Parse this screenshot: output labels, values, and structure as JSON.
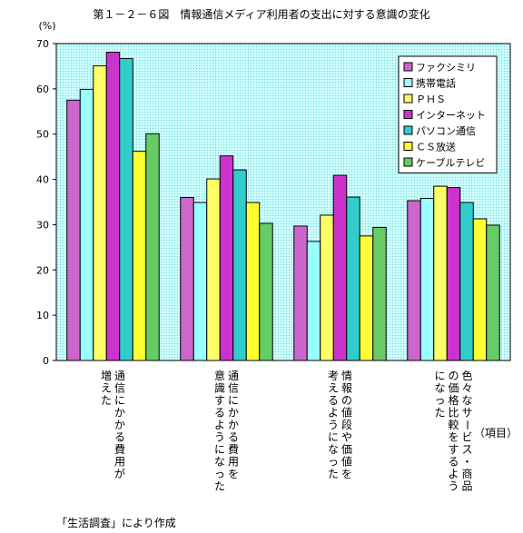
{
  "chart_data": {
    "type": "bar",
    "title": "第１－２－６図　情報通信メディア利用者の支出に対する意識の変化",
    "ylabel": "(%)",
    "xlabel": "（項目）",
    "ylim": [
      0,
      70
    ],
    "yticks": [
      0,
      10,
      20,
      30,
      40,
      50,
      60,
      70
    ],
    "grid": false,
    "legend_position": "top-right",
    "categories": [
      "通信にかかる費用が増えた",
      "通信にかかる費用を意識するようになった",
      "情報の値段や価値を考えるようになった",
      "色々なサービス・商品の価格比較をするようになった"
    ],
    "category_lines": [
      [
        "通信にかかる費用が",
        "増えた"
      ],
      [
        "通信にかかる費用を",
        "意識するようになった"
      ],
      [
        "情報の値段や価値を",
        "考えるようになった"
      ],
      [
        "色々なサービス・商品",
        "の価格比較をするよう",
        "になった"
      ]
    ],
    "series": [
      {
        "name": "ファクシミリ",
        "color": "#cc66cc",
        "values": [
          57.5,
          36.0,
          29.7,
          35.3
        ]
      },
      {
        "name": "携帯電話",
        "color": "#99ffff",
        "values": [
          59.9,
          34.9,
          26.3,
          35.8
        ]
      },
      {
        "name": "ＰＨＳ",
        "color": "#ffff66",
        "values": [
          65.1,
          40.1,
          32.1,
          38.5
        ]
      },
      {
        "name": "インターネット",
        "color": "#cc33cc",
        "values": [
          68.1,
          45.2,
          40.9,
          38.2
        ]
      },
      {
        "name": "パソコン通信",
        "color": "#33cccc",
        "values": [
          66.7,
          42.1,
          36.1,
          34.9
        ]
      },
      {
        "name": "ＣＳ放送",
        "color": "#ffff33",
        "values": [
          46.2,
          34.9,
          27.5,
          31.3
        ]
      },
      {
        "name": "ケーブルテレビ",
        "color": "#66cc66",
        "values": [
          50.1,
          30.3,
          29.4,
          29.9
        ]
      }
    ],
    "plot_background": "#ccffff",
    "source_note": "「生活調査」により作成"
  }
}
